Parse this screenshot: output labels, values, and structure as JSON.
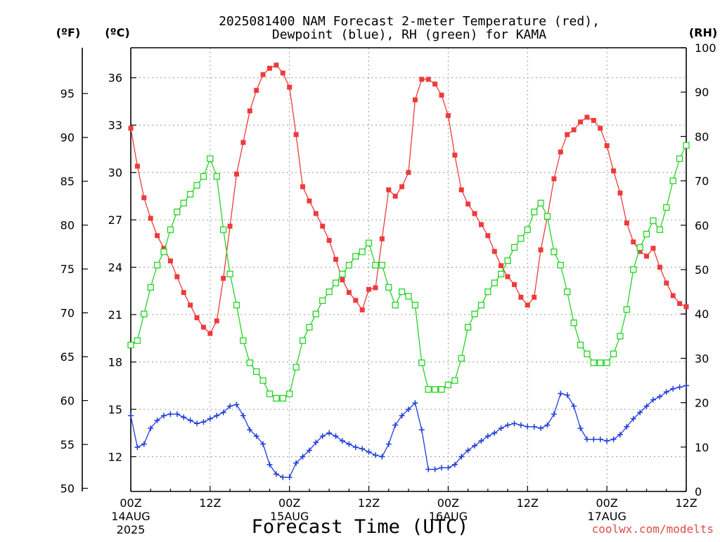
{
  "chart_data": {
    "type": "line",
    "title_line1": "2025081400 NAM Forecast 2-meter Temperature (red),",
    "title_line2": "Dewpoint (blue), RH (green) for KAMA",
    "xlabel": "Forecast Time (UTC)",
    "y_left_outer_label": "(ºF)",
    "y_left_inner_label": "(ºC)",
    "y_right_label": "(RH)",
    "watermark": "coolwx.com/modelts",
    "x_range_hours": [
      0,
      84
    ],
    "x_ticks": [
      {
        "hour": 0,
        "label": "00Z",
        "sub1": "14AUG",
        "sub2": "2025"
      },
      {
        "hour": 12,
        "label": "12Z",
        "sub1": "",
        "sub2": ""
      },
      {
        "hour": 24,
        "label": "00Z",
        "sub1": "15AUG",
        "sub2": ""
      },
      {
        "hour": 36,
        "label": "12Z",
        "sub1": "",
        "sub2": ""
      },
      {
        "hour": 48,
        "label": "00Z",
        "sub1": "16AUG",
        "sub2": ""
      },
      {
        "hour": 60,
        "label": "12Z",
        "sub1": "",
        "sub2": ""
      },
      {
        "hour": 72,
        "label": "00Z",
        "sub1": "17AUG",
        "sub2": ""
      },
      {
        "hour": 84,
        "label": "12Z",
        "sub1": "",
        "sub2": ""
      }
    ],
    "y_celsius_range": [
      9.8,
      37.9
    ],
    "y_celsius_ticks": [
      12,
      15,
      18,
      21,
      24,
      27,
      30,
      33,
      36
    ],
    "y_fahrenheit_ticks": [
      50,
      55,
      60,
      65,
      70,
      75,
      80,
      85,
      90,
      95
    ],
    "y_rh_range": [
      0,
      100
    ],
    "y_rh_ticks": [
      0,
      10,
      20,
      30,
      40,
      50,
      60,
      70,
      80,
      90,
      100
    ],
    "series": [
      {
        "name": "Temperature",
        "unit": "C",
        "axis": "celsius",
        "color": "#ef3a3a",
        "marker": "filled-square",
        "x": [
          0,
          1,
          2,
          3,
          4,
          5,
          6,
          7,
          8,
          9,
          10,
          11,
          12,
          13,
          14,
          15,
          16,
          17,
          18,
          19,
          20,
          21,
          22,
          23,
          24,
          25,
          26,
          27,
          28,
          29,
          30,
          31,
          32,
          33,
          34,
          35,
          36,
          37,
          38,
          39,
          40,
          41,
          42,
          43,
          44,
          45,
          46,
          47,
          48,
          49,
          50,
          51,
          52,
          53,
          54,
          55,
          56,
          57,
          58,
          59,
          60,
          61,
          62,
          63,
          64,
          65,
          66,
          67,
          68,
          69,
          70,
          71,
          72,
          73,
          74,
          75,
          76,
          77,
          78,
          79,
          80,
          81,
          82,
          83,
          84
        ],
        "values": [
          32.8,
          30.4,
          28.4,
          27.1,
          26.0,
          25.2,
          24.4,
          23.4,
          22.4,
          21.6,
          20.8,
          20.2,
          19.8,
          20.6,
          23.3,
          26.6,
          29.9,
          31.9,
          33.9,
          35.2,
          36.2,
          36.6,
          36.8,
          36.3,
          35.4,
          32.4,
          29.1,
          28.2,
          27.4,
          26.6,
          25.7,
          24.5,
          23.2,
          22.4,
          21.9,
          21.3,
          22.6,
          22.7,
          25.8,
          28.9,
          28.5,
          29.1,
          30.0,
          34.6,
          35.9,
          35.9,
          35.6,
          34.9,
          33.6,
          31.1,
          28.9,
          28.0,
          27.4,
          26.7,
          26.0,
          25.0,
          24.1,
          23.4,
          22.9,
          22.1,
          21.6,
          22.1,
          25.1,
          27.2,
          29.6,
          31.3,
          32.4,
          32.7,
          33.2,
          33.5,
          33.3,
          32.8,
          31.7,
          30.1,
          28.7,
          26.8,
          25.6,
          25.0,
          24.7,
          25.2,
          24.0,
          23.0,
          22.2,
          21.7,
          21.5
        ]
      },
      {
        "name": "Dewpoint",
        "unit": "C",
        "axis": "celsius",
        "color": "#1f3ddb",
        "marker": "plus",
        "x": [
          0,
          1,
          2,
          3,
          4,
          5,
          6,
          7,
          8,
          9,
          10,
          11,
          12,
          13,
          14,
          15,
          16,
          17,
          18,
          19,
          20,
          21,
          22,
          23,
          24,
          25,
          26,
          27,
          28,
          29,
          30,
          31,
          32,
          33,
          34,
          35,
          36,
          37,
          38,
          39,
          40,
          41,
          42,
          43,
          44,
          45,
          46,
          47,
          48,
          49,
          50,
          51,
          52,
          53,
          54,
          55,
          56,
          57,
          58,
          59,
          60,
          61,
          62,
          63,
          64,
          65,
          66,
          67,
          68,
          69,
          70,
          71,
          72,
          73,
          74,
          75,
          76,
          77,
          78,
          79,
          80,
          81,
          82,
          83,
          84
        ],
        "values": [
          14.6,
          12.6,
          12.8,
          13.8,
          14.3,
          14.6,
          14.7,
          14.7,
          14.5,
          14.3,
          14.1,
          14.2,
          14.4,
          14.6,
          14.8,
          15.2,
          15.3,
          14.6,
          13.7,
          13.3,
          12.8,
          11.5,
          10.9,
          10.7,
          10.7,
          11.6,
          12.0,
          12.4,
          12.9,
          13.3,
          13.5,
          13.3,
          13.0,
          12.8,
          12.6,
          12.5,
          12.3,
          12.1,
          12.0,
          12.8,
          14.0,
          14.6,
          15.0,
          15.4,
          13.7,
          11.2,
          11.2,
          11.3,
          11.3,
          11.5,
          12.0,
          12.4,
          12.7,
          13.0,
          13.3,
          13.5,
          13.8,
          14.0,
          14.1,
          14.0,
          13.9,
          13.9,
          13.8,
          14.0,
          14.7,
          16.0,
          15.9,
          15.2,
          13.8,
          13.1,
          13.1,
          13.1,
          13.0,
          13.1,
          13.4,
          13.9,
          14.4,
          14.8,
          15.2,
          15.6,
          15.8,
          16.1,
          16.3,
          16.4,
          16.5
        ]
      },
      {
        "name": "RH",
        "unit": "%",
        "axis": "rh",
        "color": "#22d422",
        "marker": "open-square",
        "x": [
          0,
          1,
          2,
          3,
          4,
          5,
          6,
          7,
          8,
          9,
          10,
          11,
          12,
          13,
          14,
          15,
          16,
          17,
          18,
          19,
          20,
          21,
          22,
          23,
          24,
          25,
          26,
          27,
          28,
          29,
          30,
          31,
          32,
          33,
          34,
          35,
          36,
          37,
          38,
          39,
          40,
          41,
          42,
          43,
          44,
          45,
          46,
          47,
          48,
          49,
          50,
          51,
          52,
          53,
          54,
          55,
          56,
          57,
          58,
          59,
          60,
          61,
          62,
          63,
          64,
          65,
          66,
          67,
          68,
          69,
          70,
          71,
          72,
          73,
          74,
          75,
          76,
          77,
          78,
          79,
          80,
          81,
          82,
          83,
          84
        ],
        "values": [
          33,
          34,
          40,
          46,
          51,
          54,
          59,
          63,
          65,
          67,
          69,
          71,
          75,
          71,
          59,
          49,
          42,
          34,
          29,
          27,
          25,
          22,
          21,
          21,
          22,
          28,
          34,
          37,
          40,
          43,
          45,
          47,
          49,
          51,
          53,
          54,
          56,
          51,
          51,
          46,
          42,
          45,
          44,
          42,
          29,
          23,
          23,
          23,
          24,
          25,
          30,
          37,
          40,
          42,
          45,
          47,
          49,
          52,
          55,
          57,
          59,
          63,
          65,
          62,
          54,
          51,
          45,
          38,
          33,
          31,
          29,
          29,
          29,
          31,
          35,
          41,
          50,
          55,
          58,
          61,
          59,
          64,
          70,
          75,
          78
        ]
      }
    ]
  }
}
